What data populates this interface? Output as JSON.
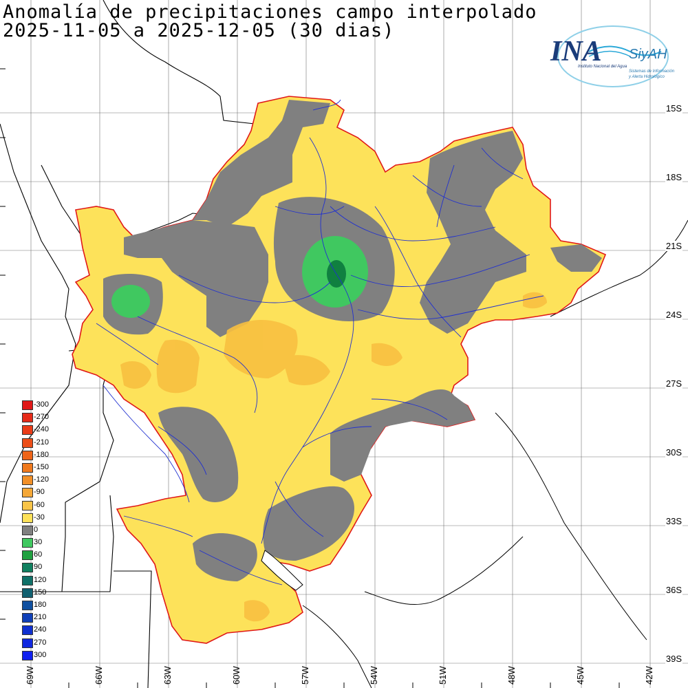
{
  "title": {
    "line1": "Anomalía de precipitaciones campo interpolado",
    "line2": "2025-11-05 a 2025-12-05 (30 dias)"
  },
  "logo": {
    "brand": "INA",
    "sub": "SiyAH",
    "caption1": "Instituto Nacional del Agua",
    "caption2": "Sistemas de Información",
    "caption3": "y Alerta Hidrológico"
  },
  "axes": {
    "lat_labels": [
      "15S",
      "18S",
      "21S",
      "24S",
      "27S",
      "30S",
      "33S",
      "36S",
      "39S"
    ],
    "lon_labels": [
      "69W",
      "66W",
      "63W",
      "60W",
      "57W",
      "54W",
      "51W",
      "48W",
      "45W",
      "42W"
    ]
  },
  "legend": {
    "entries": [
      {
        "label": "-300",
        "color": "#e01818"
      },
      {
        "label": "-270",
        "color": "#e62a18"
      },
      {
        "label": "-240",
        "color": "#ea3c18"
      },
      {
        "label": "-210",
        "color": "#ec4e18"
      },
      {
        "label": "-180",
        "color": "#ee6418"
      },
      {
        "label": "-150",
        "color": "#f07a1e"
      },
      {
        "label": "-120",
        "color": "#f29028"
      },
      {
        "label": "-90",
        "color": "#f5a838"
      },
      {
        "label": "-60",
        "color": "#f8c448"
      },
      {
        "label": "-30",
        "color": "#fde25a"
      },
      {
        "label": "0",
        "color": "#808080"
      },
      {
        "label": "30",
        "color": "#40c860"
      },
      {
        "label": "60",
        "color": "#20a040"
      },
      {
        "label": "90",
        "color": "#108060"
      },
      {
        "label": "120",
        "color": "#107068"
      },
      {
        "label": "150",
        "color": "#106070"
      },
      {
        "label": "180",
        "color": "#1050a0"
      },
      {
        "label": "210",
        "color": "#1040b8"
      },
      {
        "label": "240",
        "color": "#1030d0"
      },
      {
        "label": "270",
        "color": "#1028e0"
      },
      {
        "label": "300",
        "color": "#1020f0"
      }
    ]
  },
  "colors": {
    "basin_fill": "#fde25a",
    "basin_border": "#e01818",
    "gray_zone": "#808080",
    "green_light": "#40c860",
    "green_dark": "#108040",
    "orange_zone": "#f8c040",
    "rivers": "#2030d0",
    "borders": "#000000"
  }
}
